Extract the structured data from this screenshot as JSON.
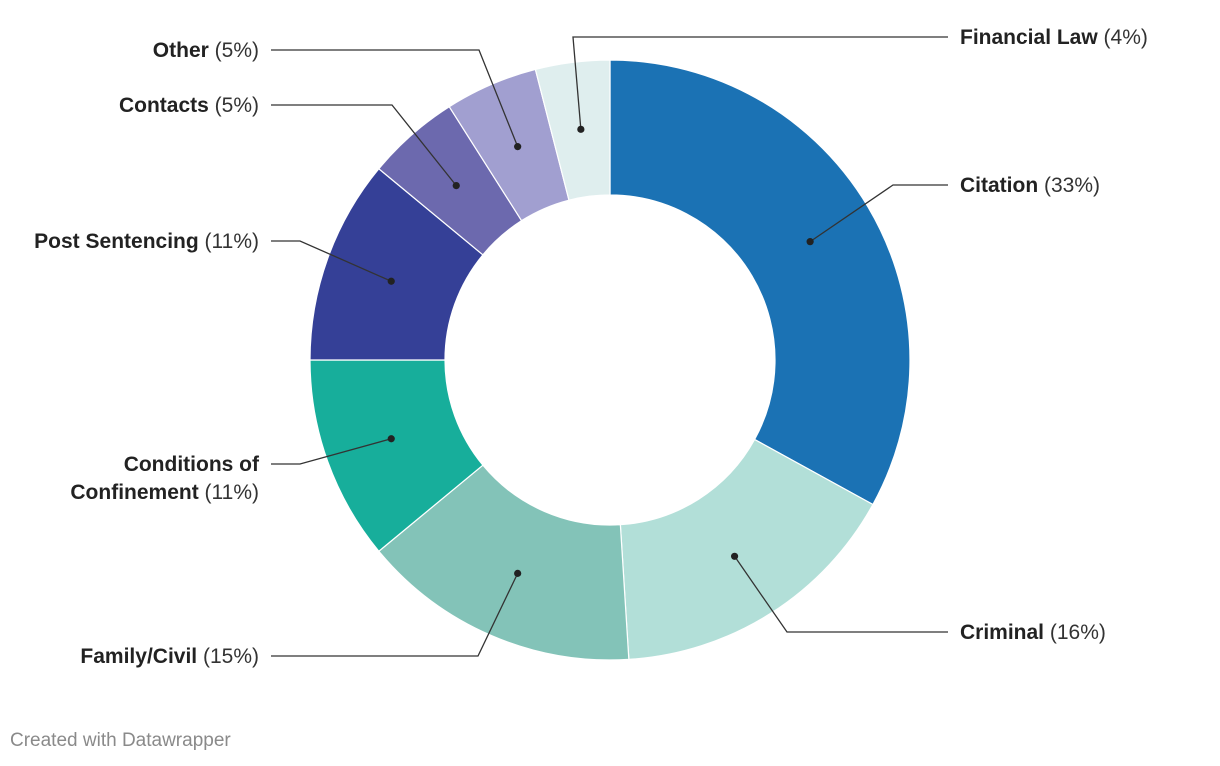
{
  "chart_data": {
    "type": "pie",
    "variant": "donut",
    "slices": [
      {
        "label": "Citation",
        "value": 33,
        "value_label": "(33%)",
        "color": "#1b72b4"
      },
      {
        "label": "Criminal",
        "value": 16,
        "value_label": "(16%)",
        "color": "#b2dfd8"
      },
      {
        "label": "Family/Civil",
        "value": 15,
        "value_label": "(15%)",
        "color": "#83c3b8"
      },
      {
        "label": "Conditions of Confinement",
        "label_lines": [
          "Conditions of",
          "Confinement"
        ],
        "value": 11,
        "value_label": "(11%)",
        "color": "#17ae9b"
      },
      {
        "label": "Post Sentencing",
        "value": 11,
        "value_label": "(11%)",
        "color": "#354097"
      },
      {
        "label": "Contacts",
        "value": 5,
        "value_label": "(5%)",
        "color": "#6c69ae"
      },
      {
        "label": "Other",
        "value": 5,
        "value_label": "(5%)",
        "color": "#a19fd0"
      },
      {
        "label": "Financial Law",
        "value": 4,
        "value_label": "(4%)",
        "color": "#dfeeee"
      }
    ]
  },
  "footer": "Created with Datawrapper"
}
